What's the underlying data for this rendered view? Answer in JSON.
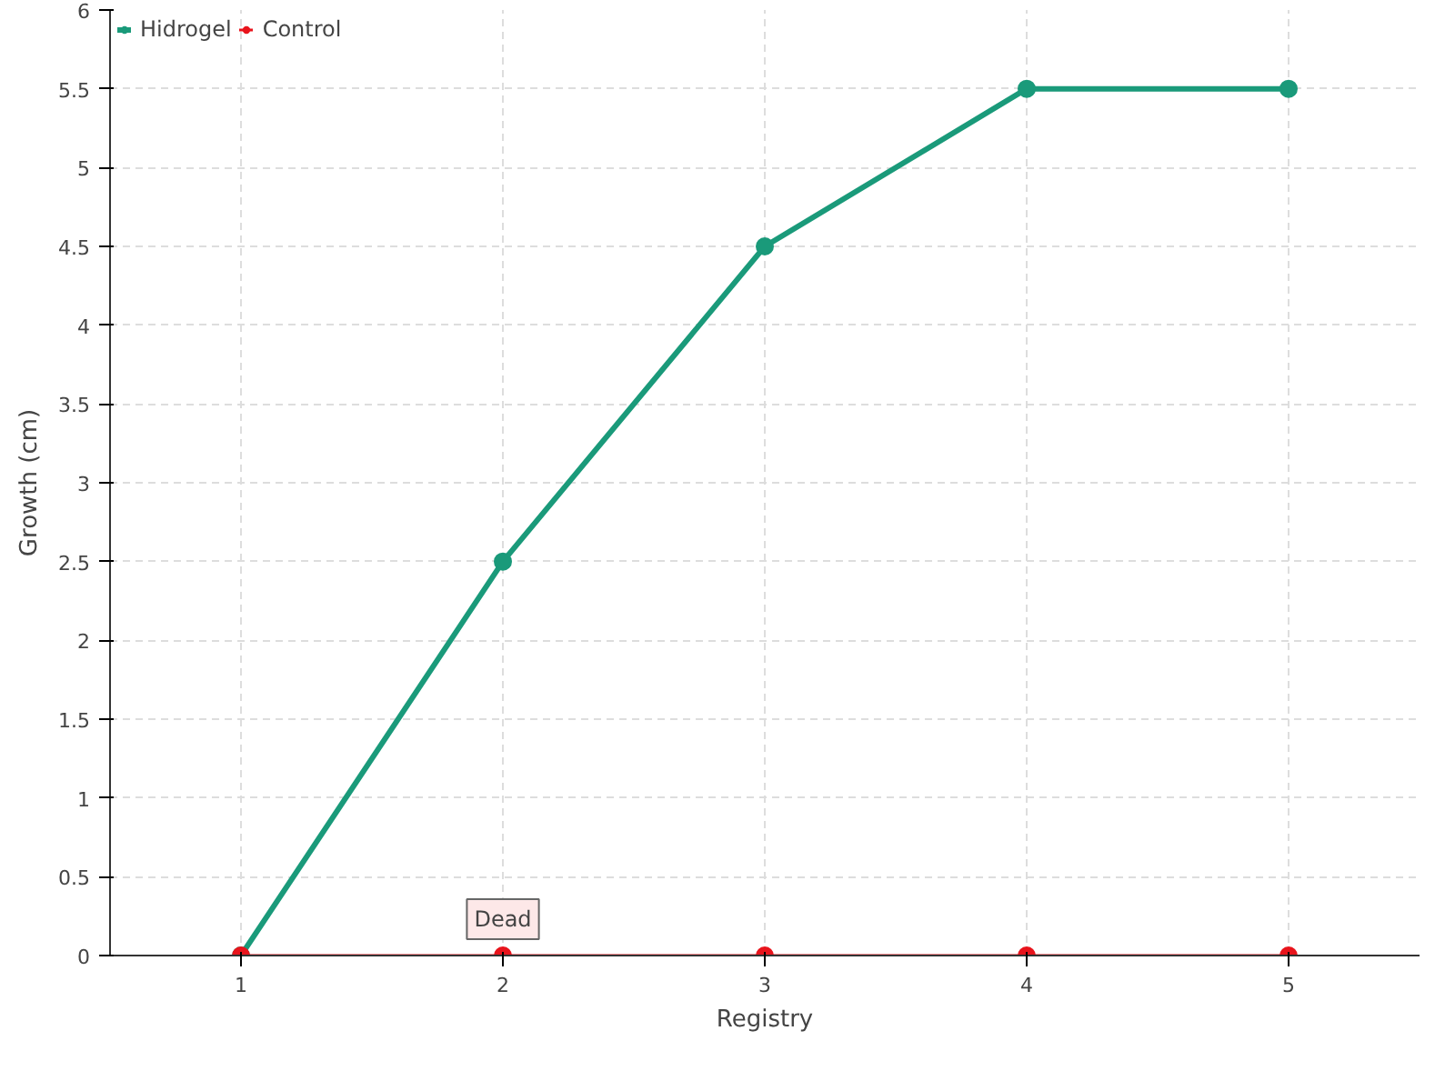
{
  "chart_data": {
    "type": "line",
    "xlabel": "Registry",
    "ylabel": "Growth (cm)",
    "categories": [
      "1",
      "2",
      "3",
      "4",
      "5"
    ],
    "series": [
      {
        "name": "Hidrogel",
        "color": "#1a9a7a",
        "values": [
          0,
          2.5,
          4.5,
          5.5,
          5.5
        ]
      },
      {
        "name": "Control",
        "color": "#e8141c",
        "values": [
          0,
          0,
          0,
          0,
          0
        ]
      }
    ],
    "ylim": [
      0,
      6
    ],
    "yticks": [
      0,
      0.5,
      1,
      1.5,
      2,
      2.5,
      3,
      3.5,
      4,
      4.5,
      5,
      5.5,
      6
    ],
    "annotations": [
      {
        "text": "Dead",
        "x": "2",
        "y": 0
      }
    ],
    "grid": true,
    "legend": "top left",
    "marker": "circle",
    "line_style": "solid"
  }
}
